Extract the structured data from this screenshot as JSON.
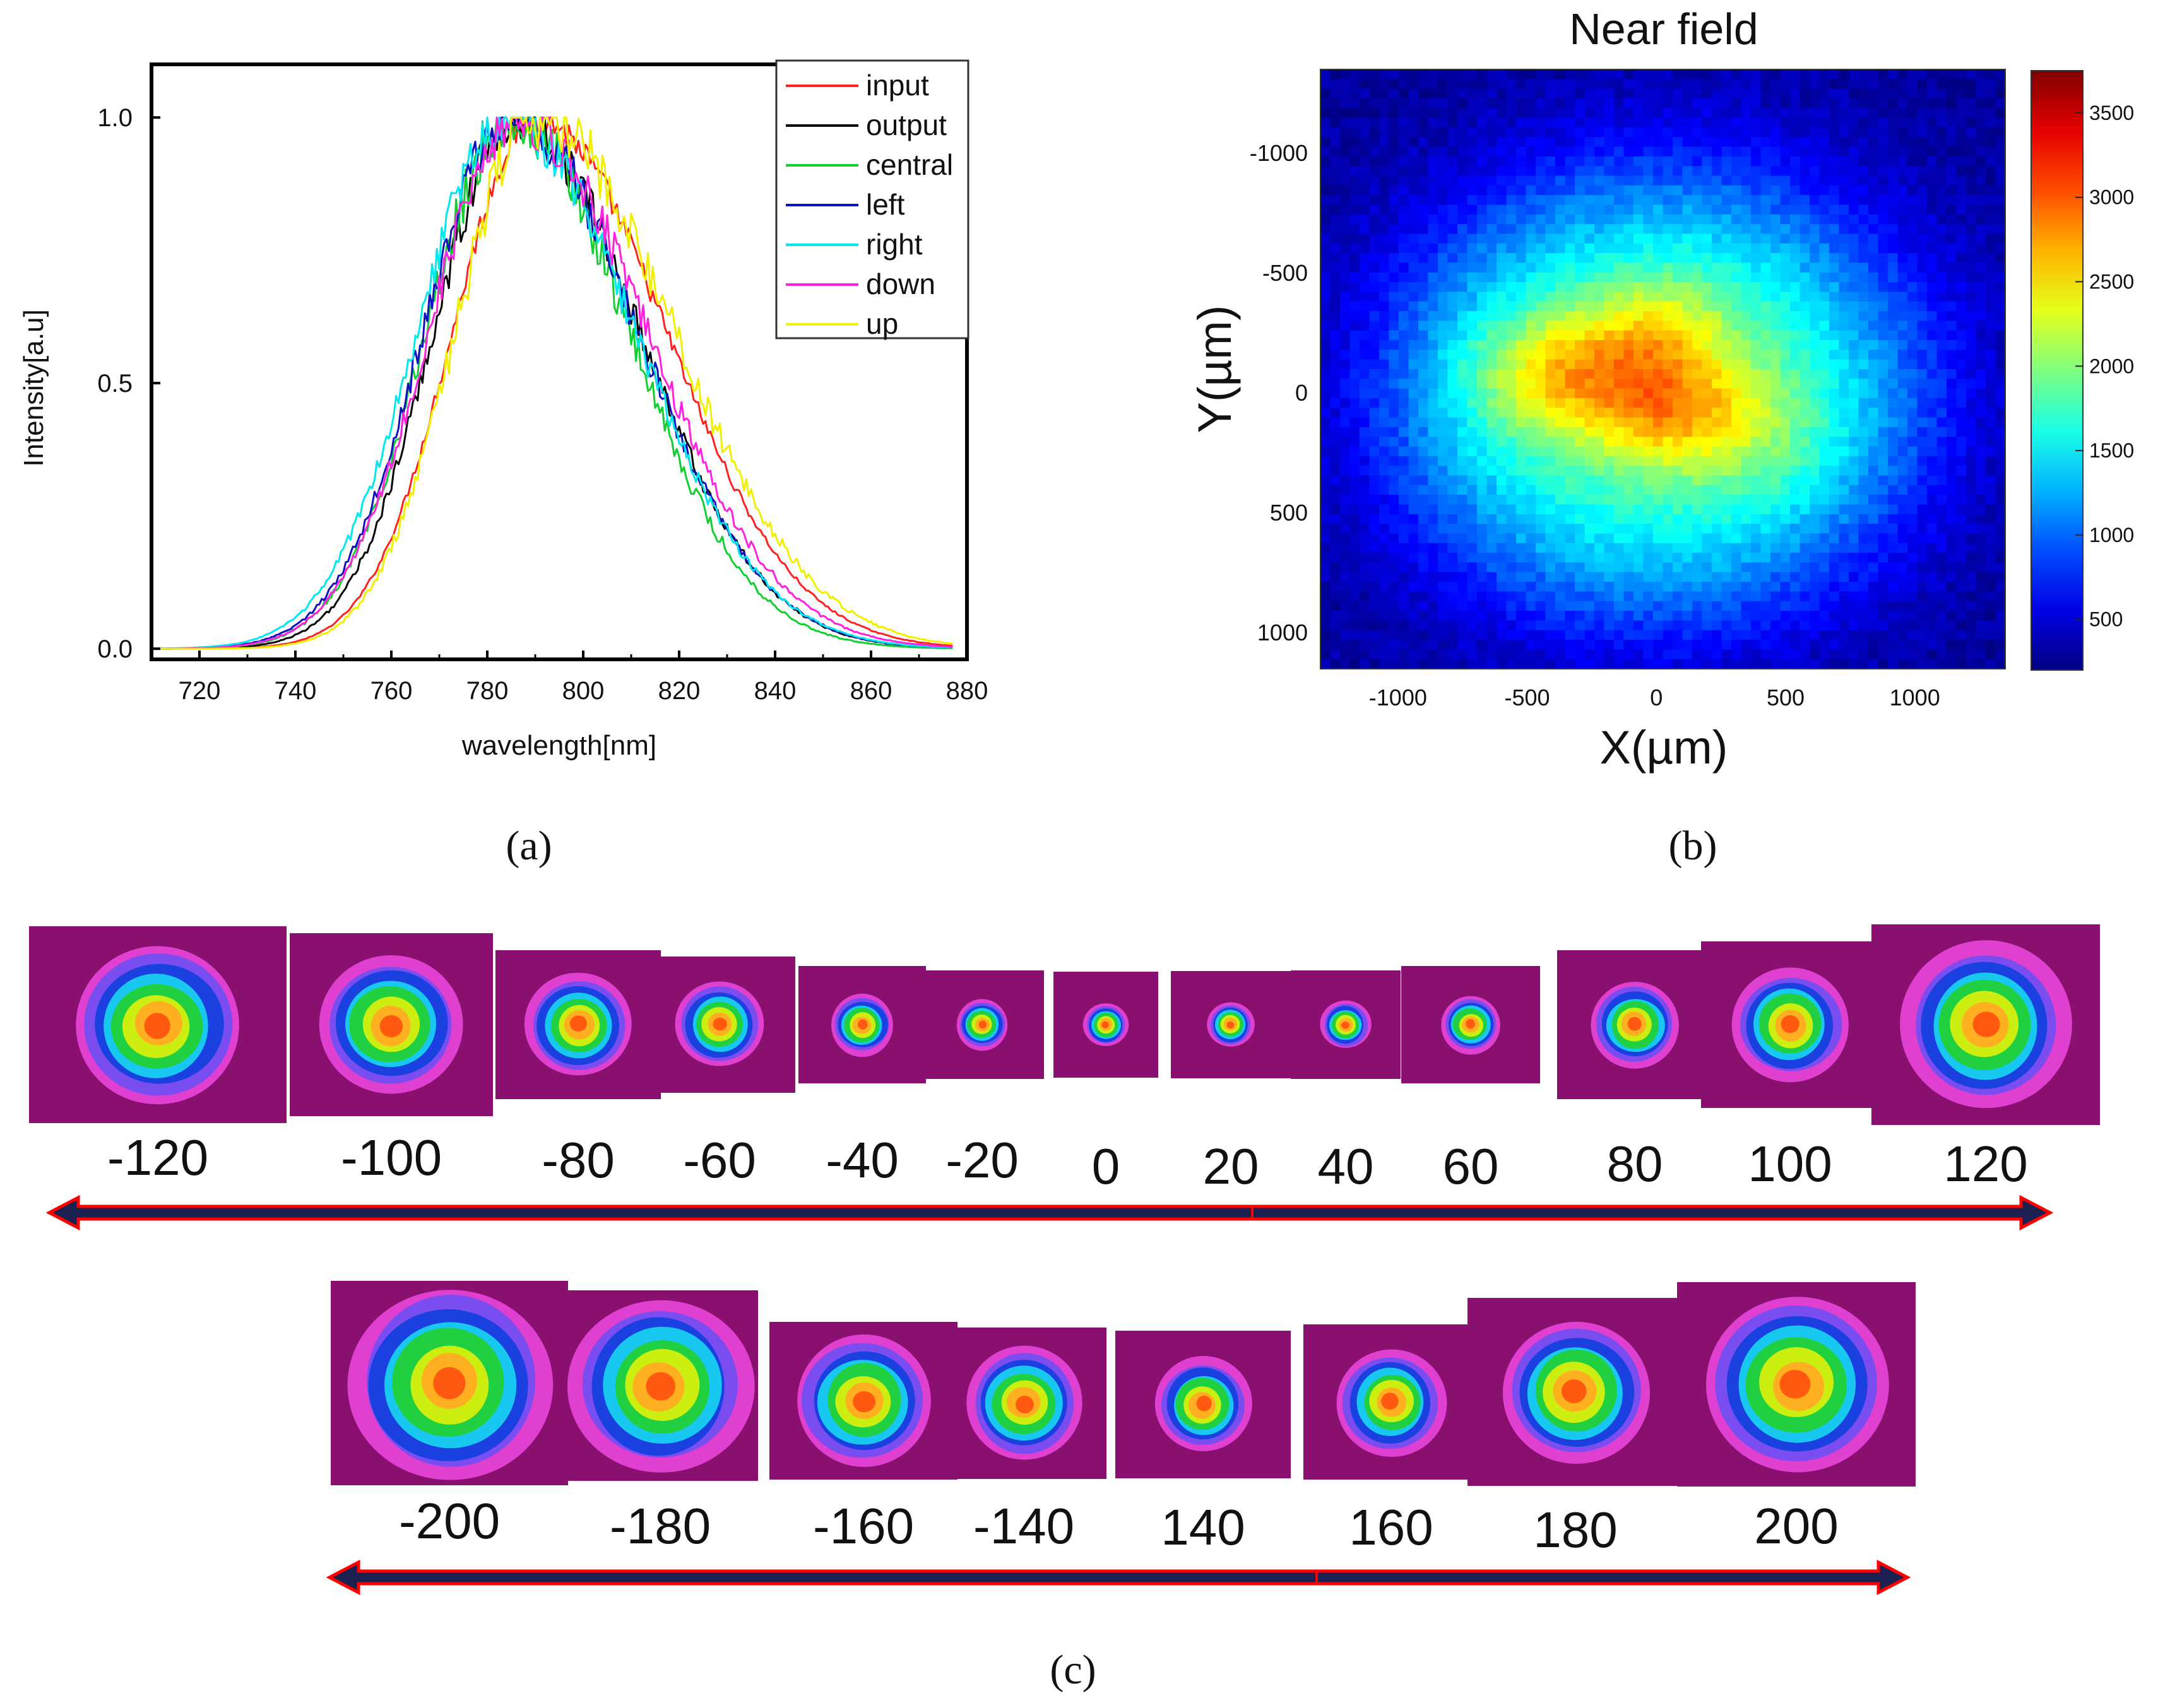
{
  "panel_labels": {
    "a": "(a)",
    "b": "(b)",
    "c": "(c)"
  },
  "chart_data": [
    {
      "id": "a",
      "type": "line",
      "title": "",
      "xlabel": "wavelength[nm]",
      "ylabel": "Intensity[a.u]",
      "xlim": [
        710,
        880
      ],
      "ylim": [
        -0.02,
        1.1
      ],
      "xticks": [
        720,
        740,
        760,
        780,
        800,
        820,
        840,
        860,
        880
      ],
      "yticks": [
        0.0,
        0.5,
        1.0
      ],
      "ytick_labels": [
        "0.0",
        "0.5",
        "1.0"
      ],
      "legend_position": "top-right",
      "series": [
        {
          "name": "input",
          "color": "#ff2020",
          "peak": 790,
          "sigma_left": 17.0,
          "sigma_right": 27.0,
          "noise": 0.03
        },
        {
          "name": "output",
          "color": "#000000",
          "peak": 786,
          "sigma_left": 17.0,
          "sigma_right": 25.5,
          "noise": 0.05
        },
        {
          "name": "central",
          "color": "#10d030",
          "peak": 785,
          "sigma_left": 17.5,
          "sigma_right": 24.5,
          "noise": 0.06
        },
        {
          "name": "left",
          "color": "#1010c0",
          "peak": 785,
          "sigma_left": 18.0,
          "sigma_right": 26.0,
          "noise": 0.05
        },
        {
          "name": "right",
          "color": "#00e8f0",
          "peak": 784,
          "sigma_left": 18.5,
          "sigma_right": 26.5,
          "noise": 0.05
        },
        {
          "name": "down",
          "color": "#ff20e0",
          "peak": 786,
          "sigma_left": 18.0,
          "sigma_right": 27.0,
          "noise": 0.05
        },
        {
          "name": "up",
          "color": "#f0f000",
          "peak": 790,
          "sigma_left": 16.5,
          "sigma_right": 28.5,
          "noise": 0.06
        }
      ]
    },
    {
      "id": "b",
      "type": "heatmap",
      "title": "Near field",
      "xlabel": "X(µm)",
      "ylabel": "Y(µm)",
      "xlim": [
        -1300,
        1350
      ],
      "ylim": [
        -1350,
        1150
      ],
      "xticks": [
        -1000,
        -500,
        0,
        500,
        1000
      ],
      "yticks": [
        -1000,
        -500,
        0,
        500,
        1000
      ],
      "colorbar": {
        "range": [
          200,
          3750
        ],
        "ticks": [
          500,
          1000,
          1500,
          2000,
          2500,
          3000,
          3500
        ]
      },
      "blobs": [
        {
          "x": 0,
          "y": 0,
          "sx": 1050,
          "sy": 950,
          "amp": 1500
        },
        {
          "x": -330,
          "y": -80,
          "sx": 380,
          "sy": 260,
          "amp": 900
        },
        {
          "x": 80,
          "y": 80,
          "sx": 300,
          "sy": 240,
          "amp": 800
        },
        {
          "x": 30,
          "y": -280,
          "sx": 280,
          "sy": 220,
          "amp": 500
        },
        {
          "x": 450,
          "y": 150,
          "sx": 300,
          "sy": 300,
          "amp": 250
        }
      ]
    },
    {
      "id": "c",
      "type": "heatmap",
      "title": "",
      "rows": [
        {
          "labels": [
            "-120",
            "-100",
            "-80",
            "-60",
            "-40",
            "-20",
            "0",
            "20",
            "40",
            "60",
            "80",
            "100",
            "120"
          ],
          "beam_size": [
            0.86,
            0.8,
            0.72,
            0.64,
            0.55,
            0.48,
            0.44,
            0.44,
            0.46,
            0.52,
            0.6,
            0.7,
            0.84
          ]
        },
        {
          "labels": [
            "-200",
            "-180",
            "-160",
            "-140",
            "140",
            "160",
            "180",
            "200"
          ],
          "beam_size": [
            1.0,
            0.96,
            0.88,
            0.78,
            0.66,
            0.7,
            0.82,
            0.92
          ]
        }
      ]
    }
  ],
  "colors": {
    "arrow_fill": "#1a2050",
    "arrow_outline": "#ff0000",
    "frame_background": "#8a1070"
  }
}
